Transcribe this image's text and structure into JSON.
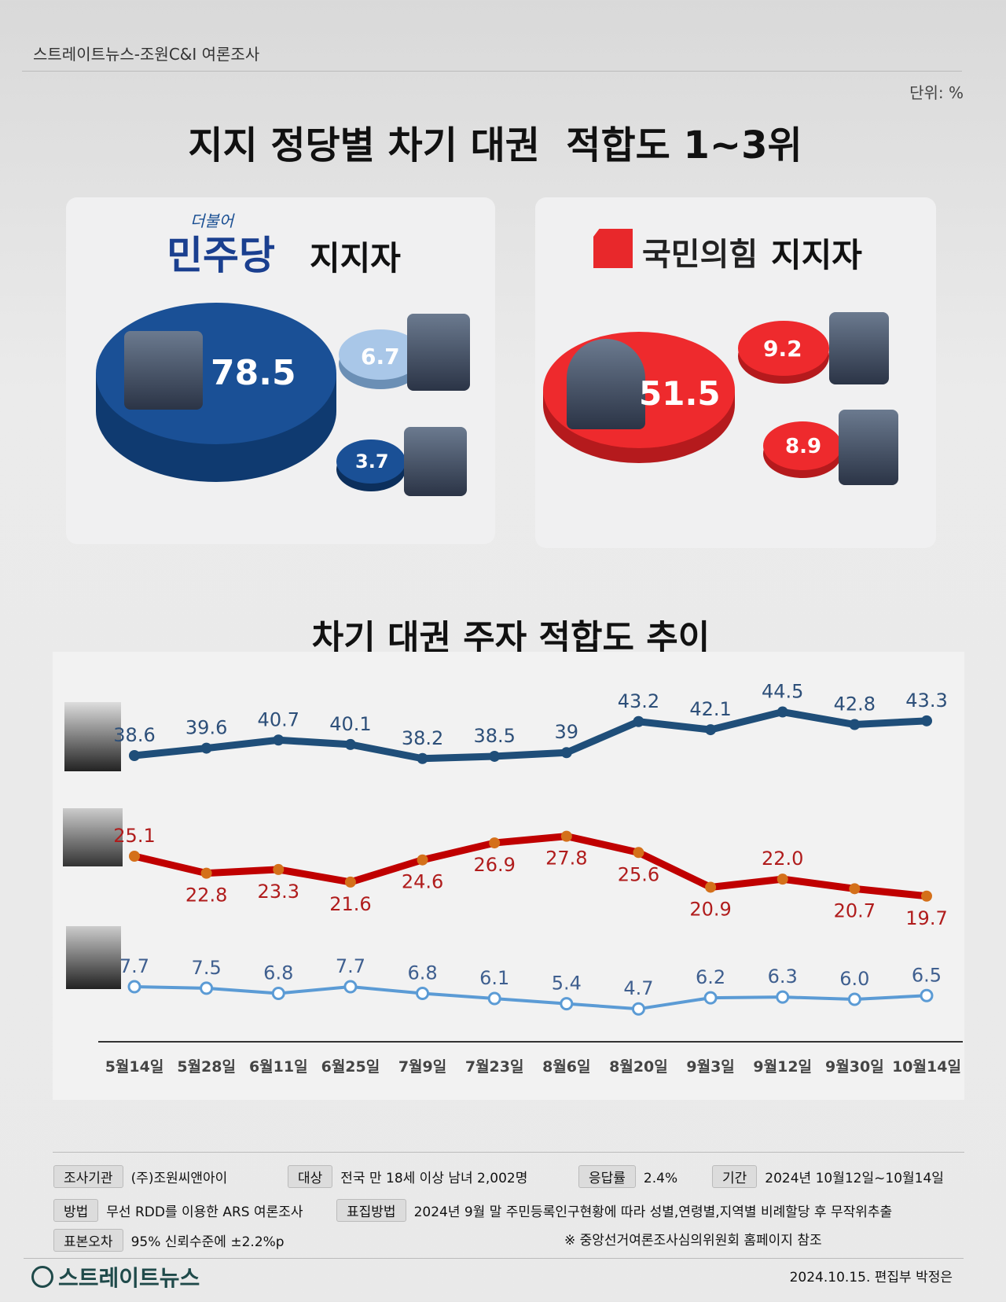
{
  "header": {
    "source": "스트레이트뉴스-조원C&I 여론조사",
    "unit": "단위: %"
  },
  "top": {
    "title": "지지 정당별 차기 대권  적합도 1~3위",
    "democratic": {
      "logo_small": "더불어",
      "logo": "민주당",
      "label": "지지자",
      "color": "#1a4f93",
      "values": [
        78.5,
        6.7,
        3.7
      ]
    },
    "ppp": {
      "logo": "국민의힘",
      "label": "지지자",
      "color": "#e8282b",
      "values": [
        51.5,
        9.2,
        8.9
      ]
    }
  },
  "chart_title": "차기 대권 주자 적합도 추이",
  "chart_data": {
    "type": "line",
    "categories": [
      "5월14일",
      "5월28일",
      "6월11일",
      "6월25일",
      "7월9일",
      "7월23일",
      "8월6일",
      "8월20일",
      "9월3일",
      "9월12일",
      "9월30일",
      "10월14일"
    ],
    "series": [
      {
        "color": "#1f4e79",
        "label_color": "#2d4f79",
        "values": [
          38.6,
          39.6,
          40.7,
          40.1,
          38.2,
          38.5,
          39,
          43.2,
          42.1,
          44.5,
          42.8,
          43.3
        ],
        "labels": [
          "38.6",
          "39.6",
          "40.7",
          "40.1",
          "38.2",
          "38.5",
          "39",
          "43.2",
          "42.1",
          "44.5",
          "42.8",
          "43.3"
        ]
      },
      {
        "color": "#c00000",
        "marker": "#d4701a",
        "label_color": "#b01c1c",
        "values": [
          25.1,
          22.8,
          23.3,
          21.6,
          24.6,
          26.9,
          27.8,
          25.6,
          20.9,
          22.0,
          20.7,
          19.7
        ],
        "labels": [
          "25.1",
          "22.8",
          "23.3",
          "21.6",
          "24.6",
          "26.9",
          "27.8",
          "25.6",
          "20.9",
          "22.0",
          "20.7",
          "19.7"
        ]
      },
      {
        "color": "#5b9bd5",
        "label_color": "#3f5f8f",
        "values": [
          7.7,
          7.5,
          6.8,
          7.7,
          6.8,
          6.1,
          5.4,
          4.7,
          6.2,
          6.3,
          6.0,
          6.5
        ],
        "labels": [
          "7.7",
          "7.5",
          "6.8",
          "7.7",
          "6.8",
          "6.1",
          "5.4",
          "4.7",
          "6.2",
          "6.3",
          "6.0",
          "6.5"
        ]
      }
    ]
  },
  "footer": {
    "rows": [
      [
        {
          "tag": "조사기관",
          "text": "(주)조원씨앤아이"
        },
        {
          "tag": "대상",
          "text": "전국 만 18세 이상 남녀 2,002명"
        },
        {
          "tag": "응답률",
          "text": "2.4%"
        },
        {
          "tag": "기간",
          "text": "2024년 10월12일~10월14일"
        }
      ],
      [
        {
          "tag": "방법",
          "text": "무선 RDD를 이용한 ARS 여론조사"
        },
        {
          "tag": "표집방법",
          "text": "2024년 9월 말 주민등록인구현황에 따라 성별,연령별,지역별 비례할당 후 무작위추출"
        }
      ],
      [
        {
          "tag": "표본오차",
          "text": "95% 신뢰수준에 ±2.2%p"
        }
      ]
    ],
    "note": "※ 중앙선거여론조사심의위원회 홈페이지 참조",
    "brand": "스트레이트뉴스",
    "byline": "2024.10.15. 편집부 박정은"
  }
}
